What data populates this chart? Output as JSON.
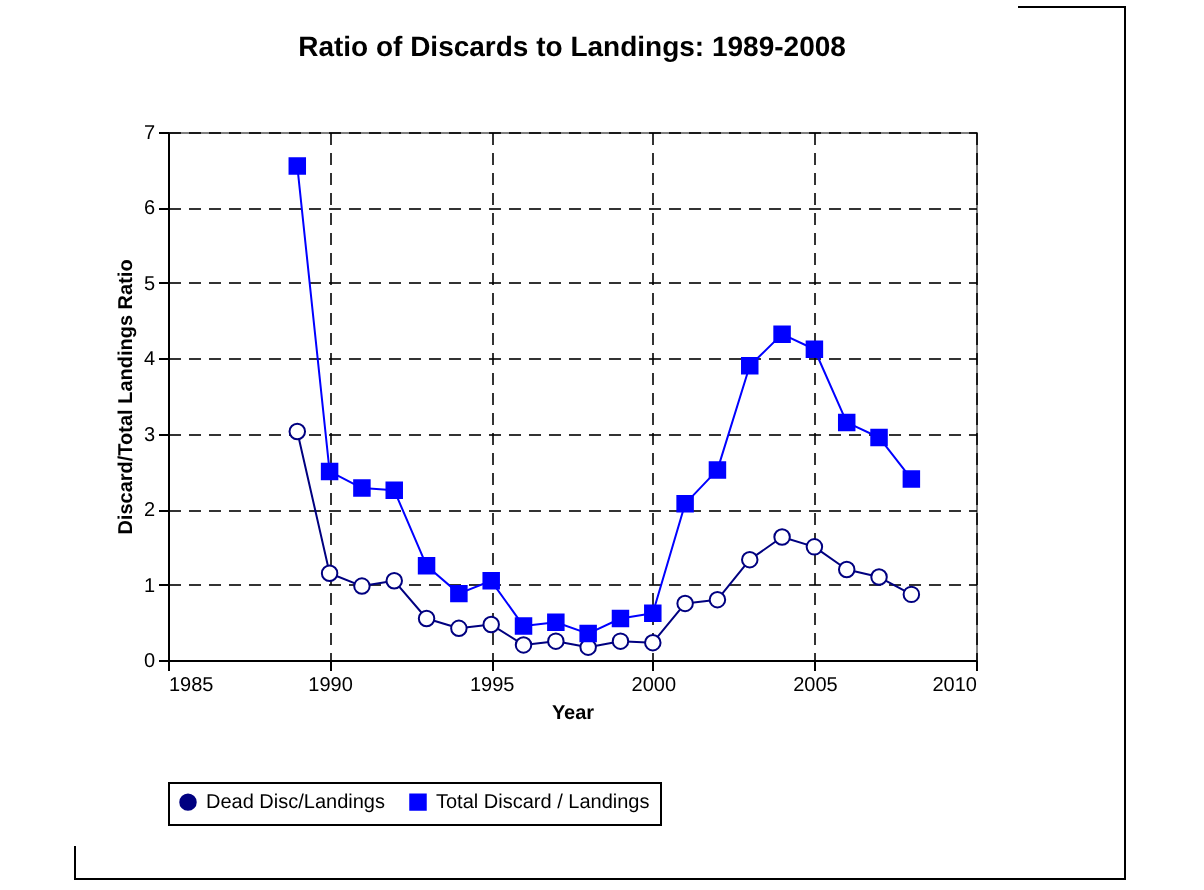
{
  "chart_data": {
    "type": "line",
    "title": "Ratio of Discards to Landings: 1989-2008",
    "xlabel": "Year",
    "ylabel": "Discard/Total Landings Ratio",
    "x": [
      1989,
      1990,
      1991,
      1992,
      1993,
      1994,
      1995,
      1996,
      1997,
      1998,
      1999,
      2000,
      2001,
      2002,
      2003,
      2004,
      2005,
      2006,
      2007,
      2008
    ],
    "series": [
      {
        "name": "Dead Disc/Landings",
        "color": "#000080",
        "marker": "circle",
        "values": [
          3.03,
          1.15,
          0.98,
          1.05,
          0.55,
          0.42,
          0.47,
          0.2,
          0.25,
          0.17,
          0.25,
          0.23,
          0.75,
          0.8,
          1.33,
          1.63,
          1.5,
          1.2,
          1.1,
          0.87
        ]
      },
      {
        "name": "Total Discard / Landings",
        "color": "#0000ff",
        "marker": "square",
        "values": [
          6.55,
          2.5,
          2.28,
          2.25,
          1.25,
          0.88,
          1.05,
          0.45,
          0.5,
          0.35,
          0.55,
          0.62,
          2.07,
          2.52,
          3.9,
          4.32,
          4.12,
          3.15,
          2.95,
          2.4
        ]
      }
    ],
    "xlim": [
      1985,
      2010
    ],
    "xticks": [
      1985,
      1990,
      1995,
      2000,
      2005,
      2010
    ],
    "ylim": [
      0,
      7
    ],
    "yticks": [
      0,
      1,
      2,
      3,
      4,
      5,
      6,
      7
    ],
    "grid": true,
    "legend": "bottom",
    "line_style": "solid"
  }
}
